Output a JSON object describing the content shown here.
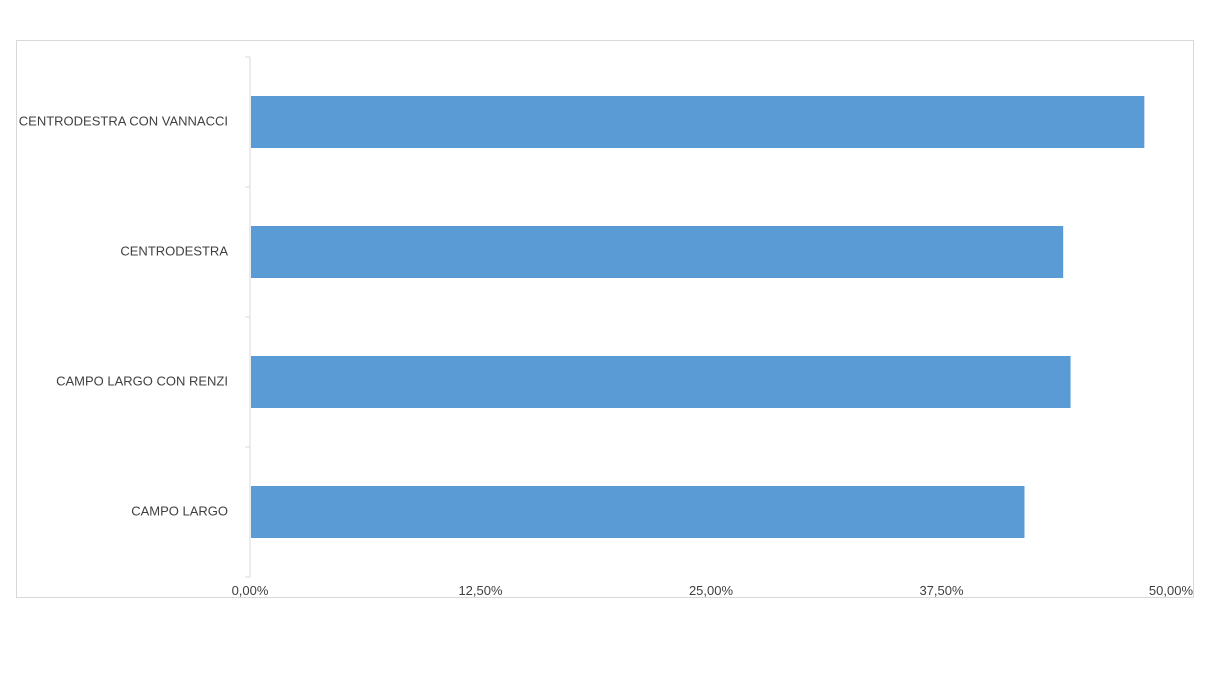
{
  "chart_data": {
    "type": "bar",
    "orientation": "horizontal",
    "categories": [
      "CENTRODESTRA CON VANNACCI",
      "CENTRODESTRA",
      "CAMPO LARGO CON RENZI",
      "CAMPO LARGO"
    ],
    "values": [
      48.5,
      44.1,
      44.5,
      42.0
    ],
    "xlim": [
      0,
      50
    ],
    "xticks": [
      "0,00%",
      "12,50%",
      "25,00%",
      "37,50%",
      "50,00%"
    ],
    "xtick_values": [
      0,
      12.5,
      25,
      37.5,
      50
    ],
    "bar_color": "#5b9bd5",
    "axis_color": "#d9d9d9",
    "grid": false,
    "legend": "none"
  }
}
